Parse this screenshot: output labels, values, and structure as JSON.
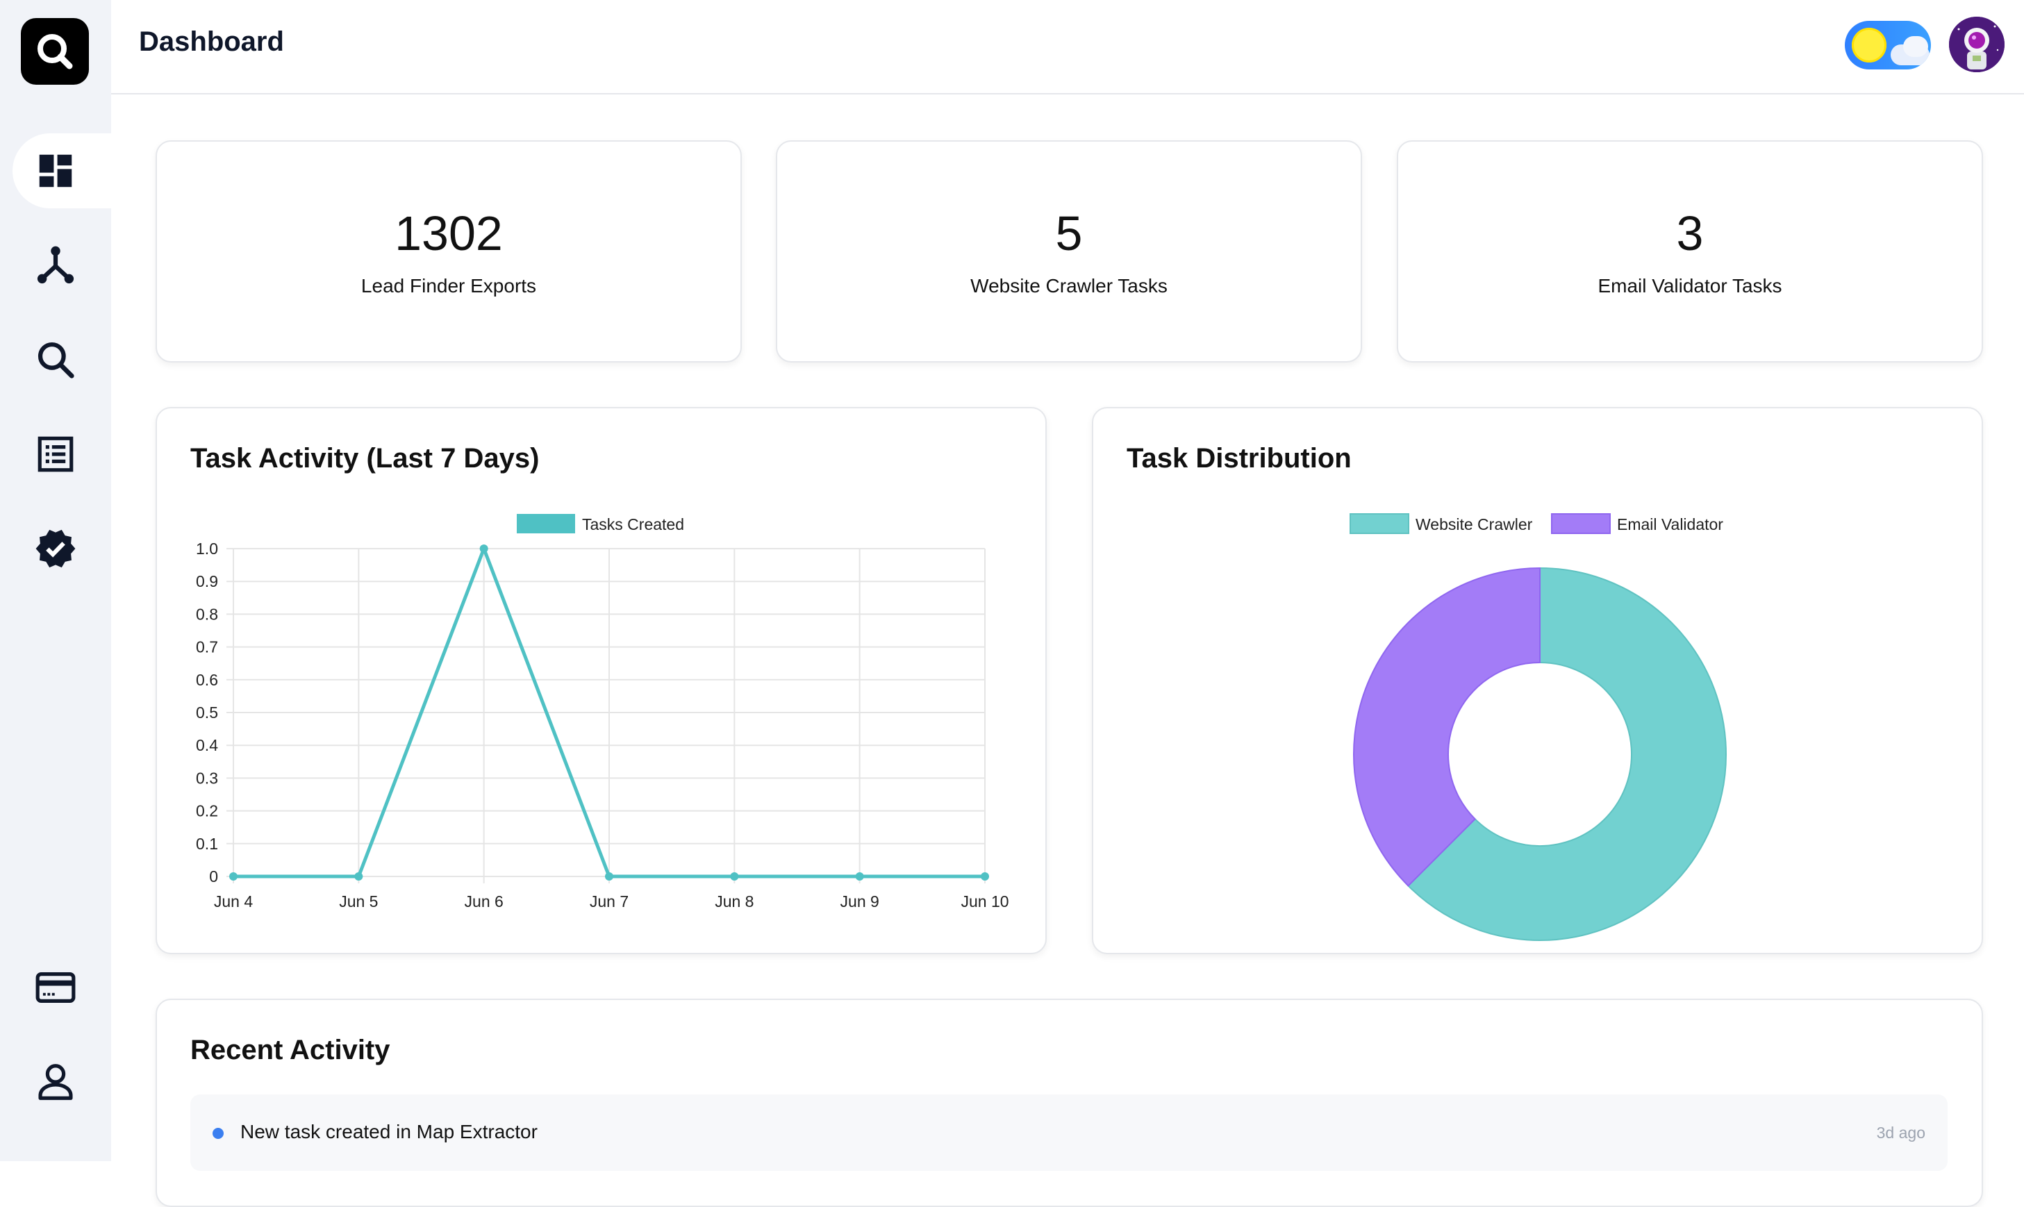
{
  "header": {
    "title": "Dashboard"
  },
  "sidebar": {
    "items": [
      {
        "name": "dashboard",
        "icon": "dashboard-icon",
        "active": true
      },
      {
        "name": "integrations",
        "icon": "network-icon"
      },
      {
        "name": "search",
        "icon": "search-icon"
      },
      {
        "name": "list",
        "icon": "list-icon"
      },
      {
        "name": "verified",
        "icon": "verified-badge-icon"
      },
      {
        "name": "billing",
        "icon": "credit-card-icon"
      },
      {
        "name": "profile",
        "icon": "user-icon"
      }
    ]
  },
  "stats": [
    {
      "value": "1302",
      "label": "Lead Finder Exports"
    },
    {
      "value": "5",
      "label": "Website Crawler Tasks"
    },
    {
      "value": "3",
      "label": "Email Validator Tasks"
    }
  ],
  "activity_chart": {
    "title": "Task Activity (Last 7 Days)"
  },
  "distribution_chart": {
    "title": "Task Distribution"
  },
  "chart_data": [
    {
      "type": "line",
      "title": "Task Activity (Last 7 Days)",
      "categories": [
        "Jun 4",
        "Jun 5",
        "Jun 6",
        "Jun 7",
        "Jun 8",
        "Jun 9",
        "Jun 10"
      ],
      "series": [
        {
          "name": "Tasks Created",
          "values": [
            0,
            0,
            1,
            0,
            0,
            0,
            0
          ],
          "color": "#4fc1c4"
        }
      ],
      "ylim": [
        0,
        1
      ],
      "yticks": [
        "1.0",
        "0.9",
        "0.8",
        "0.7",
        "0.6",
        "0.5",
        "0.4",
        "0.3",
        "0.2",
        "0.1",
        "0"
      ],
      "grid": true,
      "legend": "top"
    },
    {
      "type": "pie",
      "title": "Task Distribution",
      "donut": true,
      "categories": [
        "Website Crawler",
        "Email Validator"
      ],
      "values": [
        5,
        3
      ],
      "colors": [
        "#72d1d0",
        "#a37cf7"
      ],
      "legend": "top"
    }
  ],
  "recent_activity": {
    "title": "Recent Activity",
    "items": [
      {
        "text": "New task created in Map Extractor",
        "time": "3d ago"
      }
    ]
  }
}
